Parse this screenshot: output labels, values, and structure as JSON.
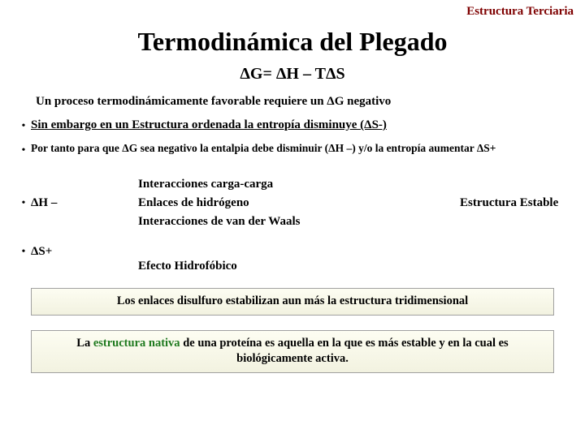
{
  "header": "Estructura Terciaria",
  "title": "Termodinámica del Plegado",
  "equation": "ΔG= ΔH – TΔS",
  "subtitle": "Un proceso termodinámicamente favorable requiere un ΔG negativo",
  "bullet1": "Sin embargo en un Estructura ordenada la entropía disminuye (ΔS-)",
  "bullet2": "Por tanto para que ΔG sea negativo la entalpia debe disminuir (ΔH –) y/o la entropía aumentar ΔS+",
  "dh_label": "ΔH –",
  "interactions": {
    "i1": "Interacciones carga-carga",
    "i2": "Enlaces de hidrógeno",
    "i3": "Interacciones de van der Waals"
  },
  "stable": "Estructura Estable",
  "ds_label": "ΔS+",
  "ds_effect": "Efecto Hidrofóbico",
  "box1": "Los enlaces disulfuro estabilizan aun más la estructura tridimensional",
  "box2_pre": "La ",
  "box2_green": "estructura nativa",
  "box2_post": " de una proteína es aquella en la que es más estable y en la cual es biológicamente activa."
}
